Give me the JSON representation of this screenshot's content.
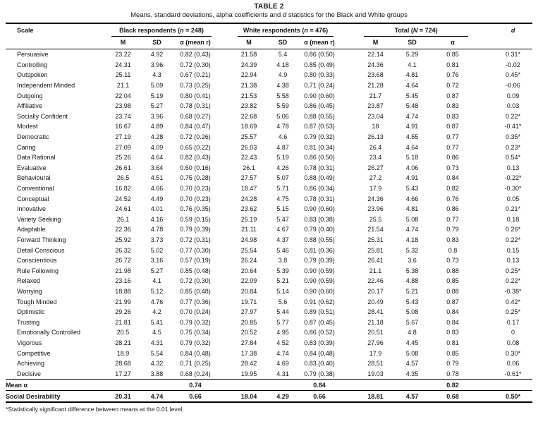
{
  "title": "TABLE 2",
  "subtitle": {
    "pre": "Means, standard deviations, alpha coefficients and ",
    "italic": "d",
    "post": " statistics for the Black and White groups"
  },
  "header": {
    "scale": "Scale",
    "d": "d",
    "groups": [
      {
        "label": "Black respondents ",
        "n_open": "(",
        "n_symbol": "n",
        "n_rest": " = 248)",
        "cols": [
          "M",
          "SD",
          "α (mean r)"
        ]
      },
      {
        "label": "White respondents ",
        "n_open": "(",
        "n_symbol": "n",
        "n_rest": " = 476)",
        "cols": [
          "M",
          "SD",
          "α (mean r)"
        ]
      },
      {
        "label": "Total ",
        "n_open": "(",
        "n_symbol": "N",
        "n_rest": " = 724)",
        "cols": [
          "M",
          "SD",
          "α"
        ]
      }
    ]
  },
  "rows": [
    {
      "scale": "Persuasive",
      "black": [
        "23.22",
        "4.92",
        "0.82 (0.43)"
      ],
      "white": [
        "21.58",
        "5.4",
        "0.86 (0.50)"
      ],
      "total": [
        "22.14",
        "5.29",
        "0.85"
      ],
      "d": "0.31*"
    },
    {
      "scale": "Controlling",
      "black": [
        "24.31",
        "3.96",
        "0.72 (0.30)"
      ],
      "white": [
        "24.39",
        "4.18",
        "0.85 (0.49)"
      ],
      "total": [
        "24.36",
        "4.1",
        "0.81"
      ],
      "d": "-0.02"
    },
    {
      "scale": "Outspoken",
      "black": [
        "25.11",
        "4.3",
        "0.67 (0.21)"
      ],
      "white": [
        "22.94",
        "4.9",
        "0.80 (0.33)"
      ],
      "total": [
        "23.68",
        "4.81",
        "0.76"
      ],
      "d": "0.45*"
    },
    {
      "scale": "Independent Minded",
      "black": [
        "21.1",
        "5.09",
        "0.73 (0.25)"
      ],
      "white": [
        "21.38",
        "4.38",
        "0.71 (0.24)"
      ],
      "total": [
        "21.28",
        "4.64",
        "0.72"
      ],
      "d": "-0.06"
    },
    {
      "scale": "Outgoing",
      "black": [
        "22.04",
        "5.19",
        "0.80 (0.41)"
      ],
      "white": [
        "21.53",
        "5.58",
        "0.90 (0.60)"
      ],
      "total": [
        "21.7",
        "5.45",
        "0.87"
      ],
      "d": "0.09"
    },
    {
      "scale": "Affiliative",
      "black": [
        "23.98",
        "5.27",
        "0.78 (0.31)"
      ],
      "white": [
        "23.82",
        "5.59",
        "0.86 (0.45)"
      ],
      "total": [
        "23.87",
        "5.48",
        "0.83"
      ],
      "d": "0.03"
    },
    {
      "scale": "Socially Confident",
      "black": [
        "23.74",
        "3.96",
        "0.68 (0.27)"
      ],
      "white": [
        "22.68",
        "5.06",
        "0.88 (0.55)"
      ],
      "total": [
        "23.04",
        "4.74",
        "0.83"
      ],
      "d": "0.22*"
    },
    {
      "scale": "Modest",
      "black": [
        "16.67",
        "4.89",
        "0.84 (0.47)"
      ],
      "white": [
        "18.69",
        "4.78",
        "0.87 (0.53)"
      ],
      "total": [
        "18",
        "4.91",
        "0.87"
      ],
      "d": "-0.41*"
    },
    {
      "scale": "Democratic",
      "black": [
        "27.19",
        "4.28",
        "0.72 (0.26)"
      ],
      "white": [
        "25.57",
        "4.6",
        "0.79 (0.32)"
      ],
      "total": [
        "26.13",
        "4.55",
        "0.77"
      ],
      "d": "0.35*"
    },
    {
      "scale": "Caring",
      "black": [
        "27.09",
        "4.09",
        "0.65 (0.22)"
      ],
      "white": [
        "26.03",
        "4.87",
        "0.81 (0.34)"
      ],
      "total": [
        "26.4",
        "4.64",
        "0.77"
      ],
      "d": "0.23*"
    },
    {
      "scale": "Data Rational",
      "black": [
        "25.26",
        "4.64",
        "0.82 (0.43)"
      ],
      "white": [
        "22.43",
        "5.19",
        "0.86 (0.50)"
      ],
      "total": [
        "23.4",
        "5.18",
        "0.86"
      ],
      "d": "0.54*"
    },
    {
      "scale": "Evaluative",
      "black": [
        "26.61",
        "3.64",
        "0.60 (0.16)"
      ],
      "white": [
        "26.1",
        "4.26",
        "0.78 (0.31)"
      ],
      "total": [
        "26.27",
        "4.06",
        "0.73"
      ],
      "d": "0.13"
    },
    {
      "scale": "Behavioural",
      "black": [
        "26.5",
        "4.51",
        "0.75 (0.28)"
      ],
      "white": [
        "27.57",
        "5.07",
        "0.88 (0.49)"
      ],
      "total": [
        "27.2",
        "4.91",
        "0.84"
      ],
      "d": "-0.22*"
    },
    {
      "scale": "Conventional",
      "black": [
        "16.82",
        "4.66",
        "0.70 (0.23)"
      ],
      "white": [
        "18.47",
        "5.71",
        "0.86 (0.34)"
      ],
      "total": [
        "17.9",
        "5.43",
        "0.82"
      ],
      "d": "-0.30*"
    },
    {
      "scale": "Conceptual",
      "black": [
        "24.52",
        "4.49",
        "0.70 (0.23)"
      ],
      "white": [
        "24.28",
        "4.75",
        "0.78 (0.31)"
      ],
      "total": [
        "24.36",
        "4.66",
        "0.76"
      ],
      "d": "0.05"
    },
    {
      "scale": "Innovative",
      "black": [
        "24.61",
        "4.01",
        "0.76 (0.35)"
      ],
      "white": [
        "23.62",
        "5.15",
        "0.90 (0.60)"
      ],
      "total": [
        "23.96",
        "4.81",
        "0.86"
      ],
      "d": "0.21*"
    },
    {
      "scale": "Variety Seeking",
      "black": [
        "26.1",
        "4.16",
        "0.59 (0.15)"
      ],
      "white": [
        "25.19",
        "5.47",
        "0.83 (0.38)"
      ],
      "total": [
        "25.5",
        "5.08",
        "0.77"
      ],
      "d": "0.18"
    },
    {
      "scale": "Adaptable",
      "black": [
        "22.36",
        "4.78",
        "0.79 (0.39)"
      ],
      "white": [
        "21.11",
        "4.67",
        "0.79 (0.40)"
      ],
      "total": [
        "21.54",
        "4.74",
        "0.79"
      ],
      "d": "0.26*"
    },
    {
      "scale": "Forward Thinking",
      "black": [
        "25.92",
        "3.73",
        "0.72 (0.31)"
      ],
      "white": [
        "24.98",
        "4.37",
        "0.88 (0.55)"
      ],
      "total": [
        "25.31",
        "4.18",
        "0.83"
      ],
      "d": "0.22*"
    },
    {
      "scale": "Detail Conscious",
      "black": [
        "26.32",
        "5.02",
        "0.77 (0.30)"
      ],
      "white": [
        "25.54",
        "5.46",
        "0.81 (0.36)"
      ],
      "total": [
        "25.81",
        "5.32",
        "0.8"
      ],
      "d": "0.15"
    },
    {
      "scale": "Conscientious",
      "black": [
        "26.72",
        "3.16",
        "0.57 (0.19)"
      ],
      "white": [
        "26.24",
        "3.8",
        "0.79 (0.39)"
      ],
      "total": [
        "26.41",
        "3.6",
        "0.73"
      ],
      "d": "0.13"
    },
    {
      "scale": "Rule Following",
      "black": [
        "21.98",
        "5.27",
        "0.85 (0.48)"
      ],
      "white": [
        "20.64",
        "5.39",
        "0.90 (0.59)"
      ],
      "total": [
        "21.1",
        "5.38",
        "0.88"
      ],
      "d": "0.25*"
    },
    {
      "scale": "Relaxed",
      "black": [
        "23.16",
        "4.1",
        "0.72 (0.30)"
      ],
      "white": [
        "22.09",
        "5.21",
        "0.90 (0.59)"
      ],
      "total": [
        "22.46",
        "4.88",
        "0.85"
      ],
      "d": "0.22*"
    },
    {
      "scale": "Worrying",
      "black": [
        "18.88",
        "5.12",
        "0.85 (0.48)"
      ],
      "white": [
        "20.84",
        "5.14",
        "0.90 (0.60)"
      ],
      "total": [
        "20.17",
        "5.21",
        "0.88"
      ],
      "d": "-0.38*"
    },
    {
      "scale": "Tough Minded",
      "black": [
        "21.99",
        "4.76",
        "0.77 (0.36)"
      ],
      "white": [
        "19.71",
        "5.6",
        "0.91 (0.62)"
      ],
      "total": [
        "20.49",
        "5.43",
        "0.87"
      ],
      "d": "0.42*"
    },
    {
      "scale": "Optimistic",
      "black": [
        "29.26",
        "4.2",
        "0.70 (0.24)"
      ],
      "white": [
        "27.97",
        "5.44",
        "0.89 (0.51)"
      ],
      "total": [
        "28.41",
        "5.08",
        "0.84"
      ],
      "d": "0.25*"
    },
    {
      "scale": "Trusting",
      "black": [
        "21.81",
        "5.41",
        "0.79 (0.32)"
      ],
      "white": [
        "20.85",
        "5.77",
        "0.87 (0.45)"
      ],
      "total": [
        "21.18",
        "5.67",
        "0.84"
      ],
      "d": "0.17"
    },
    {
      "scale": "Emotionally Controlled",
      "black": [
        "20.5",
        "4.5",
        "0.75 (0.34)"
      ],
      "white": [
        "20.52",
        "4.95",
        "0.86 (0.52)"
      ],
      "total": [
        "20.51",
        "4.8",
        "0.83"
      ],
      "d": "0"
    },
    {
      "scale": "Vigorous",
      "black": [
        "28.21",
        "4.31",
        "0.79 (0.32)"
      ],
      "white": [
        "27.84",
        "4.52",
        "0.83 (0.39)"
      ],
      "total": [
        "27.96",
        "4.45",
        "0.81"
      ],
      "d": "0.08"
    },
    {
      "scale": "Competitive",
      "black": [
        "18.9",
        "5.54",
        "0.84 (0.48)"
      ],
      "white": [
        "17.38",
        "4.74",
        "0.84 (0.48)"
      ],
      "total": [
        "17.9",
        "5.08",
        "0.85"
      ],
      "d": "0.30*"
    },
    {
      "scale": "Achieving",
      "black": [
        "28.68",
        "4.32",
        "0.71 (0.25)"
      ],
      "white": [
        "28.42",
        "4.69",
        "0.83 (0.40)"
      ],
      "total": [
        "28.51",
        "4.57",
        "0.79"
      ],
      "d": "0.06"
    },
    {
      "scale": "Decisive",
      "black": [
        "17.27",
        "3.88",
        "0.68 (0.24)"
      ],
      "white": [
        "19.95",
        "4.31",
        "0.79 (0.38)"
      ],
      "total": [
        "19.03",
        "4.35",
        "0.78"
      ],
      "d": "-0.61*"
    }
  ],
  "mean_alpha_row": {
    "label": "Mean α",
    "black_alpha": "0.74",
    "white_alpha": "0.84",
    "total_alpha": "0.82"
  },
  "social_desirability_row": {
    "label": "Social Desirability",
    "black": [
      "20.31",
      "4.74",
      "0.66"
    ],
    "white": [
      "18.04",
      "4.29",
      "0.66"
    ],
    "total": [
      "18.81",
      "4.57",
      "0.68"
    ],
    "d": "0.50*"
  },
  "footnote": "*Statistically significant difference between means at the 0.01 level."
}
